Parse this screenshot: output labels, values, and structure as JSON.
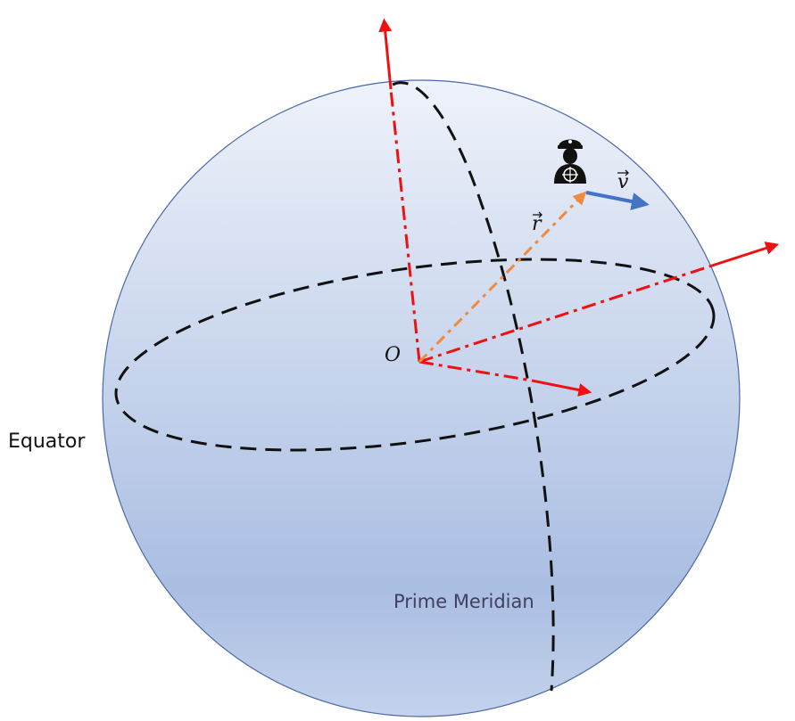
{
  "labels": {
    "equator": "Equator",
    "prime_meridian": "Prime Meridian",
    "origin": "O",
    "position_vector": "r",
    "velocity_vector": "v"
  },
  "icons": {
    "navigator": "ship-captain-icon"
  },
  "colors": {
    "sphere_top": "#eef2fa",
    "sphere_bottom": "#aabee2",
    "sphere_outline": "#4a68a8",
    "axis": "#ee1111",
    "position_vector": "#f08a3c",
    "velocity_vector": "#4472c4",
    "dashed_lines": "#111111",
    "meridian_label": "#404060"
  }
}
